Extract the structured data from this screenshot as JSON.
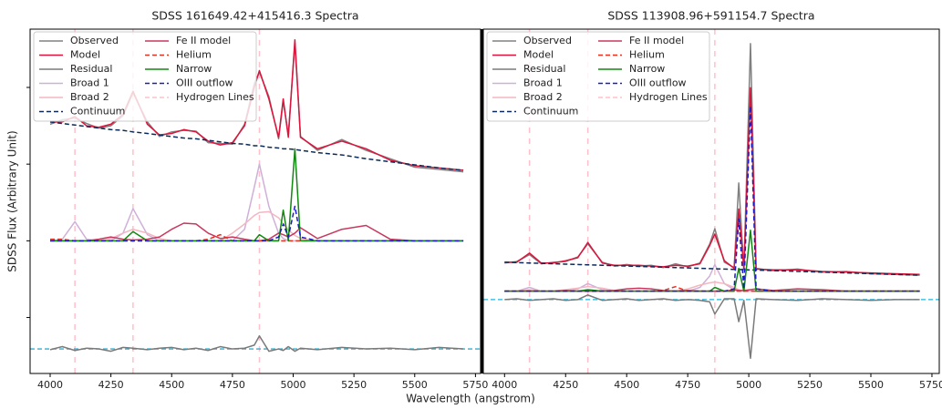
{
  "xlabel": "Wavelength (angstrom)",
  "chart_data": [
    {
      "type": "line",
      "title": "SDSS 161649.42+415416.3 Spectra",
      "ylabel": "SDSS Flux (Arbitrary Unit)",
      "xlim": [
        3917.5,
        5771
      ],
      "xticks": [
        4000,
        4250,
        4500,
        4750,
        5000,
        5250,
        5500,
        5750
      ],
      "ylim": [
        -1.73,
        2.76
      ],
      "yticks": [
        -1,
        0,
        1,
        2
      ],
      "legend": "upper left",
      "x": [
        4000,
        4050,
        4102,
        4150,
        4200,
        4250,
        4300,
        4341,
        4400,
        4450,
        4500,
        4550,
        4600,
        4650,
        4700,
        4750,
        4800,
        4840,
        4861,
        4900,
        4940,
        4959,
        4980,
        5007,
        5030,
        5100,
        5200,
        5300,
        5400,
        5500,
        5600,
        5700
      ],
      "series": [
        {
          "name": "Observed",
          "color": "#808080",
          "dashed": false,
          "values": [
            1.52,
            1.58,
            1.6,
            1.53,
            1.47,
            1.5,
            1.63,
            1.93,
            1.55,
            1.36,
            1.42,
            1.44,
            1.43,
            1.28,
            1.27,
            1.26,
            1.52,
            2.05,
            2.2,
            1.88,
            1.33,
            1.82,
            1.38,
            2.58,
            1.36,
            1.18,
            1.32,
            1.18,
            1.07,
            0.96,
            0.93,
            0.9
          ]
        },
        {
          "name": "Model",
          "color": "#dc143c",
          "dashed": false,
          "values": [
            1.55,
            1.55,
            1.62,
            1.5,
            1.48,
            1.52,
            1.65,
            1.95,
            1.52,
            1.38,
            1.4,
            1.45,
            1.42,
            1.3,
            1.25,
            1.28,
            1.5,
            2.0,
            2.22,
            1.85,
            1.35,
            1.85,
            1.35,
            2.62,
            1.35,
            1.2,
            1.3,
            1.2,
            1.05,
            0.98,
            0.95,
            0.92
          ]
        },
        {
          "name": "Residual",
          "color": "#7a7a7a",
          "dashed": false,
          "values": [
            -1.42,
            -1.38,
            -1.43,
            -1.4,
            -1.41,
            -1.44,
            -1.39,
            -1.4,
            -1.42,
            -1.4,
            -1.39,
            -1.42,
            -1.4,
            -1.43,
            -1.38,
            -1.41,
            -1.4,
            -1.36,
            -1.24,
            -1.44,
            -1.41,
            -1.43,
            -1.38,
            -1.44,
            -1.4,
            -1.42,
            -1.39,
            -1.41,
            -1.4,
            -1.42,
            -1.39,
            -1.41
          ]
        },
        {
          "name": "Broad 1",
          "color": "#cfb0d8",
          "dashed": false,
          "values": [
            0,
            0.02,
            0.25,
            0.02,
            0,
            0,
            0.1,
            0.42,
            0.08,
            0,
            0,
            0,
            0,
            0,
            0,
            0,
            0.15,
            0.7,
            1.0,
            0.45,
            0.1,
            0.03,
            0,
            0,
            0,
            0,
            0,
            0,
            0,
            0,
            0,
            0
          ]
        },
        {
          "name": "Broad 2",
          "color": "#f4b6c0",
          "dashed": false,
          "values": [
            0,
            0,
            0,
            0,
            0,
            0.03,
            0.1,
            0.15,
            0.1,
            0.03,
            0,
            0,
            0,
            0,
            0,
            0.1,
            0.22,
            0.33,
            0.37,
            0.38,
            0.3,
            0.22,
            0.14,
            0.07,
            0.03,
            0,
            0,
            0,
            0,
            0,
            0,
            0
          ]
        },
        {
          "name": "Continuum",
          "color": "#0b2a5a",
          "dashed": true,
          "values": [
            1.55,
            1.53,
            1.51,
            1.49,
            1.47,
            1.45,
            1.44,
            1.42,
            1.4,
            1.38,
            1.36,
            1.34,
            1.33,
            1.31,
            1.29,
            1.27,
            1.26,
            1.24,
            1.24,
            1.22,
            1.21,
            1.2,
            1.2,
            1.19,
            1.18,
            1.15,
            1.12,
            1.07,
            1.03,
            0.99,
            0.95,
            0.92
          ]
        },
        {
          "name": "Fe II model",
          "color": "#c8385e",
          "dashed": false,
          "values": [
            0,
            0,
            0,
            0,
            0.02,
            0.05,
            0.02,
            0.01,
            0.02,
            0.05,
            0.15,
            0.23,
            0.22,
            0.1,
            0.03,
            0.05,
            0.02,
            0,
            0,
            0.02,
            0.1,
            0.08,
            0.05,
            0.1,
            0.17,
            0.03,
            0.15,
            0.2,
            0.02,
            0,
            0,
            0
          ]
        },
        {
          "name": "Helium",
          "color": "#e8301e",
          "dashed": true,
          "values": [
            0.02,
            0.02,
            0,
            0,
            0,
            0,
            0,
            0,
            0,
            0,
            0,
            0,
            0,
            0.02,
            0.08,
            0,
            0,
            0,
            0,
            0,
            0,
            0,
            0,
            0,
            0,
            0,
            0,
            0,
            0,
            0,
            0,
            0
          ]
        },
        {
          "name": "Narrow",
          "color": "#118811",
          "dashed": false,
          "values": [
            0,
            0,
            0,
            0,
            0,
            0,
            0,
            0.12,
            0,
            0,
            0,
            0,
            0,
            0,
            0,
            0,
            0,
            0,
            0.08,
            0,
            0,
            0.4,
            0,
            1.2,
            0,
            0,
            0,
            0,
            0,
            0,
            0,
            0
          ]
        },
        {
          "name": "OIII outflow",
          "color": "#1a1acc",
          "dashed": true,
          "values": [
            0,
            0,
            0,
            0,
            0,
            0,
            0,
            0,
            0,
            0,
            0,
            0,
            0,
            0,
            0,
            0,
            0,
            0,
            0,
            0,
            0.05,
            0.22,
            0.05,
            0.45,
            0.05,
            0,
            0,
            0,
            0,
            0,
            0,
            0
          ]
        }
      ],
      "vlines": {
        "name": "Hydrogen Lines",
        "color": "#ffc0cb",
        "values": [
          4102,
          4341,
          4861
        ]
      },
      "hline": {
        "value": -1.41,
        "color": "#27b4d6"
      }
    },
    {
      "type": "line",
      "title": "SDSS 113908.96+591154.7 Spectra",
      "xlim": [
        3913,
        5780
      ],
      "xticks": [
        4000,
        4250,
        4500,
        4750,
        5000,
        5250,
        5500,
        5750
      ],
      "ylim": [
        -1.08,
        3.44
      ],
      "legend": "upper left",
      "x": [
        4000,
        4050,
        4102,
        4150,
        4200,
        4250,
        4300,
        4341,
        4400,
        4450,
        4500,
        4550,
        4600,
        4650,
        4700,
        4750,
        4800,
        4840,
        4861,
        4900,
        4940,
        4959,
        4980,
        5007,
        5030,
        5100,
        5200,
        5300,
        5400,
        5500,
        5600,
        5700
      ],
      "series": [
        {
          "name": "Observed",
          "color": "#808080",
          "dashed": false,
          "values": [
            0.37,
            0.39,
            0.48,
            0.36,
            0.38,
            0.39,
            0.45,
            0.62,
            0.38,
            0.33,
            0.35,
            0.33,
            0.34,
            0.31,
            0.36,
            0.32,
            0.37,
            0.62,
            0.82,
            0.38,
            0.31,
            1.42,
            0.28,
            3.25,
            0.3,
            0.27,
            0.29,
            0.25,
            0.26,
            0.23,
            0.22,
            0.21
          ]
        },
        {
          "name": "Model",
          "color": "#dc143c",
          "dashed": false,
          "values": [
            0.38,
            0.38,
            0.5,
            0.37,
            0.37,
            0.4,
            0.44,
            0.64,
            0.37,
            0.34,
            0.34,
            0.34,
            0.33,
            0.32,
            0.34,
            0.33,
            0.36,
            0.6,
            0.75,
            0.4,
            0.3,
            1.08,
            0.29,
            2.67,
            0.29,
            0.28,
            0.28,
            0.26,
            0.25,
            0.24,
            0.23,
            0.22
          ]
        },
        {
          "name": "Residual",
          "color": "#7a7a7a",
          "dashed": false,
          "values": [
            -0.11,
            -0.1,
            -0.12,
            -0.11,
            -0.1,
            -0.12,
            -0.11,
            -0.05,
            -0.12,
            -0.11,
            -0.1,
            -0.12,
            -0.11,
            -0.1,
            -0.12,
            -0.11,
            -0.12,
            -0.14,
            -0.3,
            -0.1,
            -0.1,
            -0.4,
            -0.12,
            -0.88,
            -0.1,
            -0.11,
            -0.12,
            -0.1,
            -0.11,
            -0.12,
            -0.11,
            -0.11
          ]
        },
        {
          "name": "Broad 1",
          "color": "#cfb0d8",
          "dashed": false,
          "values": [
            0,
            0,
            0.05,
            0,
            0,
            0,
            0.03,
            0.1,
            0.02,
            0,
            0,
            0,
            0,
            0,
            0,
            0,
            0.05,
            0.2,
            0.35,
            0.1,
            0.02,
            0,
            0,
            0,
            0,
            0,
            0,
            0,
            0,
            0,
            0,
            0
          ]
        },
        {
          "name": "Broad 2",
          "color": "#f4b6c0",
          "dashed": false,
          "values": [
            0,
            0,
            0.02,
            0,
            0,
            0.02,
            0.04,
            0.06,
            0.04,
            0.01,
            0,
            0,
            0,
            0,
            0,
            0.03,
            0.08,
            0.11,
            0.12,
            0.1,
            0.05,
            0.02,
            0,
            0,
            0,
            0,
            0,
            0,
            0,
            0,
            0,
            0
          ]
        },
        {
          "name": "Continuum",
          "color": "#0b2a5a",
          "dashed": true,
          "values": [
            0.38,
            0.375,
            0.37,
            0.365,
            0.36,
            0.355,
            0.35,
            0.346,
            0.34,
            0.335,
            0.33,
            0.325,
            0.32,
            0.315,
            0.31,
            0.305,
            0.3,
            0.296,
            0.294,
            0.29,
            0.286,
            0.284,
            0.282,
            0.279,
            0.277,
            0.27,
            0.26,
            0.25,
            0.24,
            0.23,
            0.22,
            0.21
          ]
        },
        {
          "name": "Fe II model",
          "color": "#c8385e",
          "dashed": false,
          "values": [
            0,
            0,
            0,
            0,
            0,
            0.01,
            0,
            0,
            0,
            0.01,
            0.03,
            0.04,
            0.03,
            0.01,
            0,
            0.01,
            0,
            0,
            0,
            0,
            0.02,
            0.01,
            0.01,
            0.02,
            0.03,
            0.01,
            0.03,
            0.02,
            0,
            0,
            0,
            0
          ]
        },
        {
          "name": "Helium",
          "color": "#e8301e",
          "dashed": true,
          "values": [
            0,
            0,
            0,
            0,
            0,
            0,
            0,
            0,
            0,
            0,
            0,
            0,
            0,
            0.01,
            0.06,
            0,
            0,
            0,
            0,
            0,
            0,
            0,
            0,
            0,
            0,
            0,
            0,
            0,
            0,
            0,
            0,
            0
          ]
        },
        {
          "name": "Narrow",
          "color": "#118811",
          "dashed": false,
          "values": [
            0,
            0,
            0,
            0,
            0,
            0,
            0,
            0.02,
            0,
            0,
            0,
            0,
            0,
            0,
            0,
            0,
            0,
            0,
            0.05,
            0,
            0,
            0.3,
            0,
            0.8,
            0,
            0,
            0,
            0,
            0,
            0,
            0,
            0
          ]
        },
        {
          "name": "OIII outflow",
          "color": "#1a1acc",
          "dashed": true,
          "values": [
            0,
            0,
            0,
            0,
            0,
            0,
            0,
            0,
            0,
            0,
            0,
            0,
            0,
            0,
            0,
            0,
            0,
            0,
            0,
            0,
            0.03,
            0.95,
            0.03,
            2.43,
            0.03,
            0,
            0,
            0,
            0,
            0,
            0,
            0
          ]
        }
      ],
      "vlines": {
        "name": "Hydrogen Lines",
        "color": "#ffc0cb",
        "values": [
          4102,
          4341,
          4861
        ]
      },
      "hline": {
        "value": -0.11,
        "color": "#27b4d6"
      }
    }
  ]
}
